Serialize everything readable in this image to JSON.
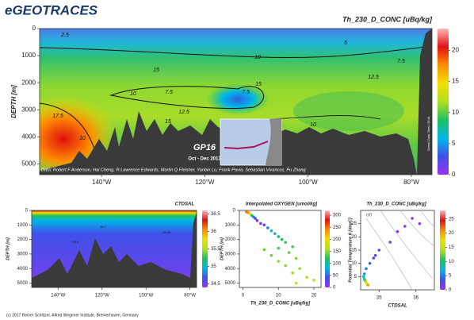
{
  "header": {
    "title": "eGEOTRACES"
  },
  "footer": "(c) 2017 Reiner Schlitzer, Alfred Wegener Institute, Bremerhaven, Germany",
  "colormap": [
    "#9b30f0",
    "#4050e8",
    "#00b8e8",
    "#20c060",
    "#b0e020",
    "#f0e000",
    "#ff8c00",
    "#e01010",
    "#ffb8b8"
  ],
  "chart_data": [
    {
      "type": "section",
      "title": "Th_230_D_CONC [uBq/kg]",
      "ylabel": "DEPTH [m]",
      "xlim": [
        -152,
        -76
      ],
      "xticks": [
        {
          "value": -140,
          "label": "140°W"
        },
        {
          "value": -120,
          "label": "120°W"
        },
        {
          "value": -100,
          "label": "100°W"
        },
        {
          "value": -80,
          "label": "80°W"
        }
      ],
      "ylim": [
        5400,
        0
      ],
      "yticks": [
        0,
        1000,
        2000,
        3000,
        4000,
        5000
      ],
      "colorbar": {
        "lim": [
          0,
          23.5
        ],
        "ticks": [
          0,
          5,
          10,
          15,
          20
        ]
      },
      "contour_labels": [
        2.5,
        5,
        10,
        7.5,
        15,
        12.5,
        10,
        7.5,
        7.5,
        15,
        17.5,
        12.5,
        15,
        10,
        10
      ],
      "annotations": [
        "GP16",
        "Oct - Dec 2013",
        "Data: Robert F Anderson, Hai Cheng, R Lawrence Edwards, Martin Q Fleisher, Yanbin Lu, Frank Pavia, Sebastian Vivancos, Pu Zhang",
        "Ocean Data View / DIVA"
      ]
    },
    {
      "type": "section",
      "title": "CTDSAL",
      "ylabel": "DEPTH [m]",
      "xlim": [
        -152,
        -77
      ],
      "xticks": [
        {
          "value": -140,
          "label": "140°W"
        },
        {
          "value": -120,
          "label": "120°W"
        },
        {
          "value": -100,
          "label": "100°W"
        },
        {
          "value": -80,
          "label": "80°W"
        }
      ],
      "ylim": [
        5300,
        0
      ],
      "yticks": [
        0,
        1000,
        2000,
        3000,
        4000,
        5000
      ],
      "colorbar": {
        "lim": [
          34.4,
          36.6
        ],
        "ticks": [
          34.5,
          35,
          35.5,
          36,
          36.5
        ]
      },
      "contour_labels": [
        34.7,
        34.65,
        34.6
      ]
    },
    {
      "type": "scatter",
      "title": "Interpolated OXYGEN [umol/kg]",
      "xlabel": "Th_230_D_CONC [uBq/kg]",
      "ylabel": "DEPTH [m]",
      "xlim": [
        -1,
        22
      ],
      "xticks": [
        0,
        10,
        20
      ],
      "ylim": [
        5300,
        0
      ],
      "yticks": [
        0,
        1000,
        2000,
        3000,
        4000,
        5000
      ],
      "colorbar": {
        "lim": [
          0,
          320
        ],
        "ticks": [
          0,
          50,
          100,
          150,
          200,
          250,
          300
        ]
      },
      "x": [
        1,
        1.5,
        2,
        2.5,
        3,
        3.5,
        4,
        5,
        6,
        7,
        8,
        9,
        10,
        11,
        12,
        14,
        10,
        6,
        13,
        8,
        15,
        10,
        12,
        16,
        14,
        18,
        20,
        15
      ],
      "values": [
        100,
        150,
        250,
        350,
        450,
        550,
        700,
        900,
        1000,
        1200,
        1400,
        1600,
        1800,
        2000,
        2200,
        2500,
        2600,
        2700,
        2900,
        3100,
        3300,
        3500,
        3800,
        4000,
        4300,
        4600,
        4800,
        5000
      ],
      "z": [
        250,
        240,
        200,
        120,
        60,
        30,
        15,
        10,
        30,
        60,
        80,
        100,
        110,
        120,
        125,
        130,
        135,
        140,
        140,
        145,
        145,
        150,
        150,
        155,
        155,
        160,
        160,
        165
      ]
    },
    {
      "type": "scatter",
      "title": "Th_230_D_CONC [uBq/kg]",
      "xlabel": "CTDSAL",
      "ylabel": "Potential Temperature θ [degC]",
      "xlim": [
        34.5,
        36.5
      ],
      "xticks": [
        35,
        36
      ],
      "ylim": [
        0,
        30
      ],
      "yticks": [
        5,
        10,
        15,
        20,
        25
      ],
      "colorbar": {
        "lim": [
          0,
          28
        ],
        "ticks": [
          0,
          5,
          10,
          15,
          20,
          25
        ]
      },
      "annotations": [
        "σ0"
      ],
      "x": [
        35.9,
        36.1,
        35.7,
        35.5,
        35.3,
        35.0,
        34.9,
        34.85,
        34.75,
        34.65,
        34.6,
        34.58,
        34.6,
        34.62,
        34.64,
        34.66,
        34.68,
        34.7
      ],
      "values": [
        27,
        25,
        24,
        22,
        18,
        15,
        13,
        12,
        10,
        8,
        6,
        5,
        4,
        3.5,
        3,
        2.5,
        2,
        1.8
      ],
      "z": [
        0.5,
        0.8,
        0.6,
        1,
        1.5,
        2,
        2.5,
        3,
        4,
        5,
        6,
        8,
        10,
        12,
        14,
        16,
        18,
        20
      ]
    }
  ]
}
